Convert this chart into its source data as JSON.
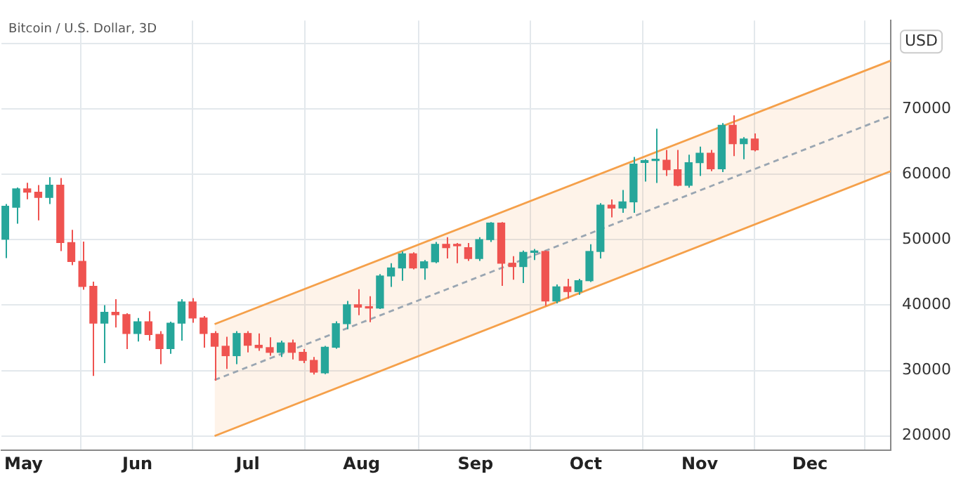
{
  "chart_data": {
    "type": "candlestick",
    "title": "Bitcoin / U.S. Dollar, 3D",
    "ylabel": "USD",
    "x": [
      "--04-26",
      "--04-29",
      "--05-02",
      "--05-05",
      "--05-08",
      "--05-11",
      "--05-14",
      "--05-17",
      "--05-20",
      "--05-23",
      "--05-26",
      "--05-29",
      "--06-01",
      "--06-04",
      "--06-07",
      "--06-10",
      "--06-13",
      "--06-16",
      "--06-19",
      "--06-22",
      "--06-25",
      "--06-28",
      "--07-01",
      "--07-04",
      "--07-07",
      "--07-10",
      "--07-13",
      "--07-16",
      "--07-19",
      "--07-22",
      "--07-25",
      "--07-28",
      "--07-31",
      "--08-03",
      "--08-06",
      "--08-09",
      "--08-12",
      "--08-15",
      "--08-18",
      "--08-21",
      "--08-24",
      "--08-27",
      "--08-30",
      "--09-02",
      "--09-05",
      "--09-08",
      "--09-11",
      "--09-14",
      "--09-17",
      "--09-20",
      "--09-23",
      "--09-26",
      "--09-29",
      "--10-02",
      "--10-05",
      "--10-08",
      "--10-11",
      "--10-14",
      "--10-17",
      "--10-20",
      "--10-23",
      "--10-26",
      "--10-29",
      "--11-01",
      "--11-04",
      "--11-07",
      "--11-10",
      "--11-13",
      "--11-16"
    ],
    "ohlc": [
      [
        50060,
        55460,
        47180,
        55100
      ],
      [
        54950,
        57980,
        52430,
        57760
      ],
      [
        57760,
        58700,
        56180,
        57260
      ],
      [
        57260,
        58340,
        52940,
        56460
      ],
      [
        56460,
        59560,
        55460,
        58340
      ],
      [
        58340,
        59420,
        48260,
        49550
      ],
      [
        49550,
        51500,
        46100,
        46670
      ],
      [
        46670,
        49700,
        42350,
        42860
      ],
      [
        42860,
        43580,
        29180,
        37240
      ],
      [
        37240,
        39980,
        31120,
        38900
      ],
      [
        38900,
        40910,
        36590,
        38540
      ],
      [
        38540,
        38750,
        33280,
        35660
      ],
      [
        35660,
        38030,
        34430,
        37460
      ],
      [
        37460,
        39040,
        34580,
        35510
      ],
      [
        35510,
        36020,
        30980,
        33350
      ],
      [
        33350,
        37460,
        32560,
        37240
      ],
      [
        37240,
        40910,
        34580,
        40480
      ],
      [
        40480,
        41060,
        37310,
        38030
      ],
      [
        38030,
        38320,
        33500,
        35660
      ],
      [
        35660,
        36020,
        28460,
        33710
      ],
      [
        33710,
        35150,
        30260,
        32270
      ],
      [
        32270,
        36020,
        30980,
        35660
      ],
      [
        35660,
        36020,
        32780,
        33860
      ],
      [
        33860,
        35660,
        33000,
        33500
      ],
      [
        33500,
        35080,
        32270,
        32780
      ],
      [
        32780,
        34580,
        32060,
        34220
      ],
      [
        34220,
        34720,
        31700,
        32780
      ],
      [
        32780,
        33280,
        31120,
        31550
      ],
      [
        31550,
        32060,
        29390,
        29750
      ],
      [
        29660,
        33770,
        29440,
        33560
      ],
      [
        33560,
        37520,
        33340,
        37160
      ],
      [
        37160,
        40630,
        36300,
        40050
      ],
      [
        40050,
        42430,
        38460,
        39690
      ],
      [
        39690,
        41350,
        37380,
        39550
      ],
      [
        39550,
        44740,
        39400,
        44450
      ],
      [
        44450,
        46400,
        42790,
        45680
      ],
      [
        45680,
        48200,
        43730,
        47840
      ],
      [
        47840,
        48060,
        45460,
        45680
      ],
      [
        45680,
        46900,
        43870,
        46620
      ],
      [
        46620,
        49650,
        46400,
        49290
      ],
      [
        49290,
        50370,
        47120,
        48780
      ],
      [
        49290,
        49500,
        46400,
        49070
      ],
      [
        48780,
        49500,
        46760,
        47120
      ],
      [
        47120,
        50370,
        46760,
        50010
      ],
      [
        50010,
        52680,
        49650,
        52540
      ],
      [
        52540,
        52680,
        42940,
        46400
      ],
      [
        46400,
        47480,
        43870,
        45890
      ],
      [
        45890,
        48350,
        43370,
        48060
      ],
      [
        48060,
        48570,
        46900,
        48200
      ],
      [
        48200,
        48350,
        39910,
        40630
      ],
      [
        40630,
        43150,
        40270,
        42790
      ],
      [
        42790,
        44020,
        40990,
        42070
      ],
      [
        42070,
        44020,
        41570,
        43730
      ],
      [
        43730,
        49290,
        43520,
        48200
      ],
      [
        48200,
        55570,
        47120,
        55280
      ],
      [
        55280,
        56140,
        53400,
        54840
      ],
      [
        54840,
        57590,
        54120,
        55780
      ],
      [
        55780,
        62640,
        54120,
        61560
      ],
      [
        61800,
        62280,
        58890,
        62090
      ],
      [
        62090,
        66970,
        58670,
        62280
      ],
      [
        62130,
        63720,
        59750,
        60690
      ],
      [
        60690,
        63720,
        58160,
        58310
      ],
      [
        58310,
        63000,
        57950,
        61770
      ],
      [
        61770,
        64230,
        59750,
        63220
      ],
      [
        63220,
        63720,
        60470,
        60830
      ],
      [
        60830,
        67830,
        60330,
        67470
      ],
      [
        67470,
        68990,
        62780,
        64660
      ],
      [
        64660,
        65670,
        62280,
        65380
      ],
      [
        65380,
        66250,
        63500,
        63720
      ]
    ],
    "colors": [
      "#26a69a",
      "#26a69a",
      "#ef5350",
      "#ef5350",
      "#26a69a",
      "#ef5350",
      "#ef5350",
      "#ef5350",
      "#ef5350",
      "#26a69a",
      "#ef5350",
      "#ef5350",
      "#26a69a",
      "#ef5350",
      "#ef5350",
      "#26a69a",
      "#26a69a",
      "#ef5350",
      "#ef5350",
      "#ef5350",
      "#ef5350",
      "#26a69a",
      "#ef5350",
      "#ef5350",
      "#ef5350",
      "#26a69a",
      "#ef5350",
      "#ef5350",
      "#ef5350",
      "#26a69a",
      "#26a69a",
      "#26a69a",
      "#ef5350",
      "#ef5350",
      "#26a69a",
      "#26a69a",
      "#26a69a",
      "#ef5350",
      "#26a69a",
      "#26a69a",
      "#ef5350",
      "#ef5350",
      "#ef5350",
      "#26a69a",
      "#26a69a",
      "#ef5350",
      "#ef5350",
      "#26a69a",
      "#26a69a",
      "#ef5350",
      "#26a69a",
      "#ef5350",
      "#26a69a",
      "#26a69a",
      "#26a69a",
      "#ef5350",
      "#26a69a",
      "#26a69a",
      "#26a69a",
      "#26a69a",
      "#ef5350",
      "#ef5350",
      "#26a69a",
      "#26a69a",
      "#ef5350",
      "#26a69a",
      "#ef5350",
      "#26a69a",
      "#ef5350"
    ],
    "series": [
      {
        "type": "line",
        "color": "#f5a04a",
        "x": [
          "--06-22",
          "--12-23"
        ],
        "values": [
          37090,
          77360
        ]
      },
      {
        "type": "line",
        "color": "#f5a04a",
        "x": [
          "--06-22",
          "--12-23"
        ],
        "values": [
          20000,
          60470
        ]
      },
      {
        "type": "line",
        "color": "#9aa6b2",
        "line_style": "dashed",
        "x": [
          "--06-22",
          "--12-23"
        ],
        "values": [
          28550,
          68920
        ],
        "lower": [
          20000,
          60470
        ],
        "upper": [
          37090,
          77360
        ]
      }
    ],
    "xlim": [
      "--04-25",
      "--12-23"
    ],
    "xticks": [
      {
        "value": "--05-01",
        "label": "May"
      },
      {
        "value": "--06-01",
        "label": "Jun"
      },
      {
        "value": "--07-01",
        "label": "Jul"
      },
      {
        "value": "--08-01",
        "label": "Aug"
      },
      {
        "value": "--09-01",
        "label": "Sep"
      },
      {
        "value": "--10-01",
        "label": "Oct"
      },
      {
        "value": "--11-01",
        "label": "Nov"
      },
      {
        "value": "--12-01",
        "label": "Dec"
      }
    ],
    "ylim": [
      17800,
      83500
    ],
    "yticks": [
      20000,
      30000,
      40000,
      50000,
      60000,
      70000,
      {
        "value": 80000,
        "label": null
      }
    ],
    "grid": true
  }
}
